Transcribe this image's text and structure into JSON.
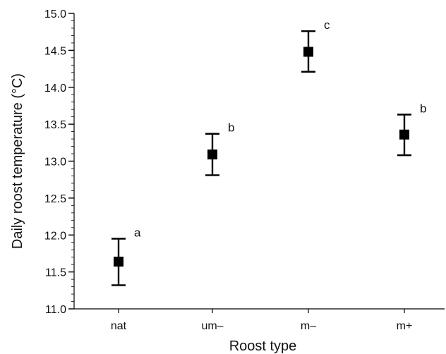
{
  "chart_data": {
    "type": "scatter",
    "xlabel": "Roost type",
    "ylabel": "Daily roost temperature (°C)",
    "ylim": [
      11.0,
      15.0
    ],
    "y_ticks": [
      "11.0",
      "11.5",
      "12.0",
      "12.5",
      "13.0",
      "13.5",
      "14.0",
      "14.5",
      "15.0"
    ],
    "y_minor_step": 0.1,
    "categories": [
      "nat",
      "um–",
      "m–",
      "m+"
    ],
    "values": [
      11.64,
      13.09,
      14.48,
      13.36
    ],
    "error_low": [
      11.32,
      12.81,
      14.21,
      13.08
    ],
    "error_high": [
      11.95,
      13.37,
      14.76,
      13.63
    ],
    "significance_labels": [
      "a",
      "b",
      "c",
      "b"
    ],
    "marker": "square",
    "color": "#000000"
  }
}
